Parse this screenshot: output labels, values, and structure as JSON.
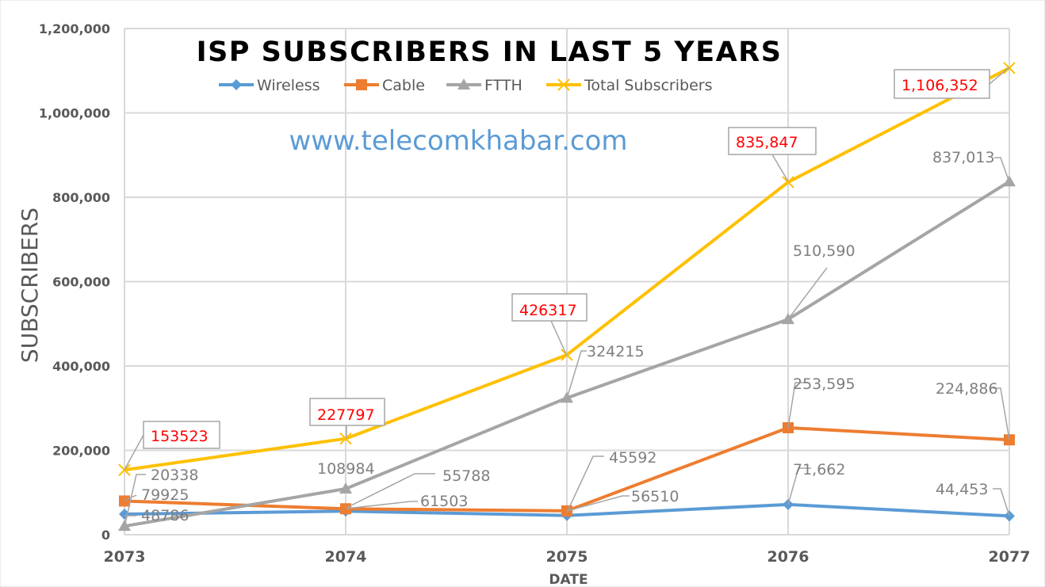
{
  "chart_data": {
    "type": "line",
    "title": "ISP SUBSCRIBERS IN LAST 5 YEARS",
    "watermark": "www.telecomkhabar.com",
    "xlabel": "DATE",
    "ylabel": "SUBSCRIBERS",
    "categories": [
      "2073",
      "2074",
      "2075",
      "2076",
      "2077"
    ],
    "ylim": [
      0,
      1200000
    ],
    "yticks": [
      "0",
      "200,000",
      "400,000",
      "600,000",
      "800,000",
      "1,000,000",
      "1,200,000"
    ],
    "grid": true,
    "legend_position": "top",
    "series": [
      {
        "name": "Wireless",
        "color": "#5b9bd5",
        "marker": "diamond",
        "values": [
          48786,
          55788,
          45592,
          71662,
          44453
        ],
        "labels": [
          "48786",
          "55788",
          "45592",
          "71,662",
          "44,453"
        ]
      },
      {
        "name": "Cable",
        "color": "#ed7d31",
        "marker": "square",
        "values": [
          79925,
          61503,
          56510,
          253595,
          224886
        ],
        "labels": [
          "79925",
          "61503",
          "56510",
          "253,595",
          "224,886"
        ]
      },
      {
        "name": "FTTH",
        "color": "#a5a5a5",
        "marker": "triangle",
        "values": [
          20338,
          108984,
          324215,
          510590,
          837013
        ],
        "labels": [
          "20338",
          "108984",
          "324215",
          "510,590",
          "837,013"
        ]
      },
      {
        "name": "Total Subscribers",
        "color": "#ffc000",
        "marker": "x",
        "values": [
          153523,
          227797,
          426317,
          835847,
          1106352
        ],
        "labels": [
          "153523",
          "227797",
          "426317",
          "835,847",
          "1,106,352"
        ]
      }
    ]
  }
}
